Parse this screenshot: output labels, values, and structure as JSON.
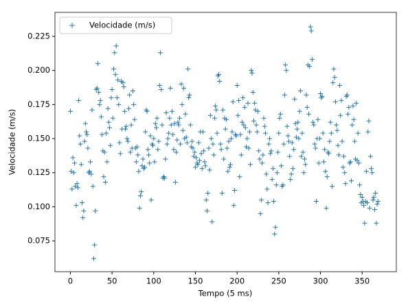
{
  "chart_data": {
    "type": "scatter",
    "xlabel": "Tempo (5 ms)",
    "ylabel": "Velocidade (m/s)",
    "legend": "upper left",
    "series": [
      {
        "name": "Velocidade (m/s)",
        "color": "#1f77b4",
        "marker": "+",
        "x": [
          0,
          1,
          2,
          3,
          4,
          5,
          6,
          7,
          8,
          9,
          10,
          11,
          12,
          13,
          14,
          15,
          16,
          17,
          18,
          19,
          20,
          21,
          22,
          23,
          24,
          25,
          26,
          27,
          28,
          29,
          30,
          31,
          32,
          33,
          34,
          35,
          36,
          37,
          38,
          39,
          40,
          41,
          42,
          43,
          44,
          45,
          46,
          47,
          48,
          49,
          50,
          51,
          52,
          53,
          54,
          55,
          56,
          57,
          58,
          59,
          60,
          61,
          62,
          63,
          64,
          65,
          66,
          67,
          68,
          69,
          70,
          71,
          72,
          73,
          74,
          75,
          76,
          77,
          78,
          79,
          80,
          81,
          82,
          83,
          84,
          85,
          86,
          87,
          88,
          89,
          90,
          91,
          92,
          93,
          94,
          95,
          96,
          97,
          98,
          99,
          100,
          101,
          102,
          103,
          104,
          105,
          106,
          107,
          108,
          109,
          110,
          111,
          112,
          113,
          114,
          115,
          116,
          117,
          118,
          119,
          120,
          121,
          122,
          123,
          124,
          125,
          126,
          127,
          128,
          129,
          130,
          131,
          132,
          133,
          134,
          135,
          136,
          137,
          138,
          139,
          140,
          141,
          142,
          143,
          144,
          145,
          146,
          147,
          148,
          149,
          150,
          151,
          152,
          153,
          154,
          155,
          156,
          157,
          158,
          159,
          160,
          161,
          162,
          163,
          164,
          165,
          166,
          167,
          168,
          169,
          170,
          171,
          172,
          173,
          174,
          175,
          176,
          177,
          178,
          179,
          180,
          181,
          182,
          183,
          184,
          185,
          186,
          187,
          188,
          189,
          190,
          191,
          192,
          193,
          194,
          195,
          196,
          197,
          198,
          199,
          200,
          201,
          202,
          203,
          204,
          205,
          206,
          207,
          208,
          209,
          210,
          211,
          212,
          213,
          214,
          215,
          216,
          217,
          218,
          219,
          220,
          221,
          222,
          223,
          224,
          225,
          226,
          227,
          228,
          229,
          230,
          231,
          232,
          233,
          234,
          235,
          236,
          237,
          238,
          239,
          240,
          241,
          242,
          243,
          244,
          245,
          246,
          247,
          248,
          249,
          250,
          251,
          252,
          253,
          254,
          255,
          256,
          257,
          258,
          259,
          260,
          261,
          262,
          263,
          264,
          265,
          266,
          267,
          268,
          269,
          270,
          271,
          272,
          273,
          274,
          275,
          276,
          277,
          278,
          279,
          280,
          281,
          282,
          283,
          284,
          285,
          286,
          287,
          288,
          289,
          290,
          291,
          292,
          293,
          294,
          295,
          296,
          297,
          298,
          299,
          300,
          301,
          302,
          303,
          304,
          305,
          306,
          307,
          308,
          309,
          310,
          311,
          312,
          313,
          314,
          315,
          316,
          317,
          318,
          319,
          320,
          321,
          322,
          323,
          324,
          325,
          326,
          327,
          328,
          329,
          330,
          331,
          332,
          333,
          334,
          335,
          336,
          337,
          338,
          339,
          340,
          341,
          342,
          343,
          344,
          345,
          346,
          347,
          348,
          349,
          350,
          351,
          352,
          353,
          354,
          355,
          356,
          357,
          358,
          359,
          360,
          361,
          362,
          363,
          364,
          365,
          366,
          367,
          368,
          369
        ],
        "values": [
          0.17,
          0.126,
          0.113,
          0.136,
          0.125,
          0.132,
          0.115,
          0.101,
          0.117,
          0.114,
          0.178,
          0.152,
          0.146,
          0.131,
          0.103,
          0.092,
          0.097,
          0.148,
          0.161,
          0.155,
          0.153,
          0.143,
          0.125,
          0.126,
          0.133,
          0.124,
          0.171,
          0.115,
          0.062,
          0.072,
          0.097,
          0.186,
          0.187,
          0.205,
          0.184,
          0.175,
          0.178,
          0.166,
          0.153,
          0.141,
          0.122,
          0.14,
          0.118,
          0.154,
          0.133,
          0.172,
          0.162,
          0.158,
          0.145,
          0.18,
          0.186,
          0.165,
          0.201,
          0.213,
          0.197,
          0.218,
          0.18,
          0.193,
          0.175,
          0.147,
          0.139,
          0.192,
          0.157,
          0.191,
          0.188,
          0.17,
          0.157,
          0.159,
          0.15,
          0.148,
          0.172,
          0.182,
          0.14,
          0.16,
          0.143,
          0.185,
          0.175,
          0.164,
          0.143,
          0.133,
          0.144,
          0.138,
          0.126,
          0.099,
          0.108,
          0.111,
          0.13,
          0.135,
          0.128,
          0.129,
          0.155,
          0.171,
          0.17,
          0.142,
          0.138,
          0.132,
          0.152,
          0.105,
          0.146,
          0.145,
          0.15,
          0.133,
          0.161,
          0.158,
          0.165,
          0.142,
          0.148,
          0.189,
          0.213,
          0.186,
          0.16,
          0.121,
          0.122,
          0.121,
          0.135,
          0.169,
          0.146,
          0.15,
          0.154,
          0.165,
          0.187,
          0.16,
          0.17,
          0.153,
          0.142,
          0.161,
          0.118,
          0.14,
          0.149,
          0.162,
          0.16,
          0.165,
          0.146,
          0.19,
          0.175,
          0.156,
          0.187,
          0.15,
          0.168,
          0.151,
          0.147,
          0.201,
          0.18,
          0.182,
          0.16,
          0.144,
          0.148,
          0.143,
          0.137,
          0.14,
          0.129,
          0.136,
          0.132,
          0.131,
          0.147,
          0.134,
          0.155,
          0.139,
          0.128,
          0.155,
          0.141,
          0.133,
          0.13,
          0.105,
          0.097,
          0.11,
          0.143,
          0.127,
          0.167,
          0.15,
          0.089,
          0.146,
          0.138,
          0.165,
          0.174,
          0.171,
          0.154,
          0.196,
          0.197,
          0.192,
          0.146,
          0.142,
          0.11,
          0.171,
          0.135,
          0.165,
          0.157,
          0.164,
          0.143,
          0.126,
          0.148,
          0.129,
          0.131,
          0.15,
          0.155,
          0.177,
          0.101,
          0.112,
          0.153,
          0.152,
          0.189,
          0.167,
          0.178,
          0.122,
          0.153,
          0.138,
          0.162,
          0.18,
          0.16,
          0.173,
          0.158,
          0.144,
          0.15,
          0.176,
          0.143,
          0.155,
          0.131,
          0.2,
          0.198,
          0.184,
          0.163,
          0.176,
          0.171,
          0.16,
          0.155,
          0.17,
          0.141,
          0.135,
          0.095,
          0.105,
          0.132,
          0.138,
          0.165,
          0.159,
          0.154,
          0.124,
          0.113,
          0.103,
          0.146,
          0.15,
          0.139,
          0.141,
          0.12,
          0.128,
          0.104,
          0.08,
          0.085,
          0.116,
          0.125,
          0.14,
          0.154,
          0.165,
          0.168,
          0.13,
          0.115,
          0.116,
          0.146,
          0.182,
          0.204,
          0.2,
          0.159,
          0.152,
          0.148,
          0.137,
          0.12,
          0.124,
          0.147,
          0.128,
          0.142,
          0.179,
          0.161,
          0.151,
          0.157,
          0.162,
          0.15,
          0.17,
          0.185,
          0.137,
          0.154,
          0.14,
          0.125,
          0.135,
          0.131,
          0.182,
          0.173,
          0.204,
          0.168,
          0.203,
          0.232,
          0.229,
          0.208,
          0.162,
          0.16,
          0.146,
          0.143,
          0.104,
          0.15,
          0.164,
          0.132,
          0.15,
          0.183,
          0.18,
          0.181,
          0.154,
          0.133,
          0.142,
          0.126,
          0.099,
          0.122,
          0.14,
          0.139,
          0.148,
          0.162,
          0.154,
          0.115,
          0.191,
          0.201,
          0.195,
          0.177,
          0.16,
          0.156,
          0.145,
          0.138,
          0.189,
          0.167,
          0.178,
          0.148,
          0.129,
          0.137,
          0.125,
          0.117,
          0.181,
          0.182,
          0.168,
          0.173,
          0.132,
          0.133,
          0.119,
          0.16,
          0.174,
          0.164,
          0.148,
          0.135,
          0.176,
          0.134,
          0.154,
          0.132,
          0.116,
          0.109,
          0.103,
          0.107,
          0.104,
          0.101,
          0.088,
          0.104,
          0.126,
          0.103,
          0.155,
          0.163,
          0.099,
          0.137,
          0.128,
          0.125,
          0.105,
          0.107,
          0.098,
          0.11,
          0.088,
          0.102,
          0.104
        ]
      }
    ],
    "xlim": [
      -18.5,
      391
    ],
    "xticks": [
      0,
      50,
      100,
      150,
      200,
      250,
      300,
      350
    ],
    "ylim": [
      0.0524,
      0.2426
    ],
    "yticks": [
      0.075,
      {
        "value": 0.1,
        "label": "0.100"
      },
      0.125,
      {
        "value": 0.15,
        "label": "0.150"
      },
      0.175,
      {
        "value": 0.2,
        "label": "0.200"
      },
      0.225
    ]
  }
}
